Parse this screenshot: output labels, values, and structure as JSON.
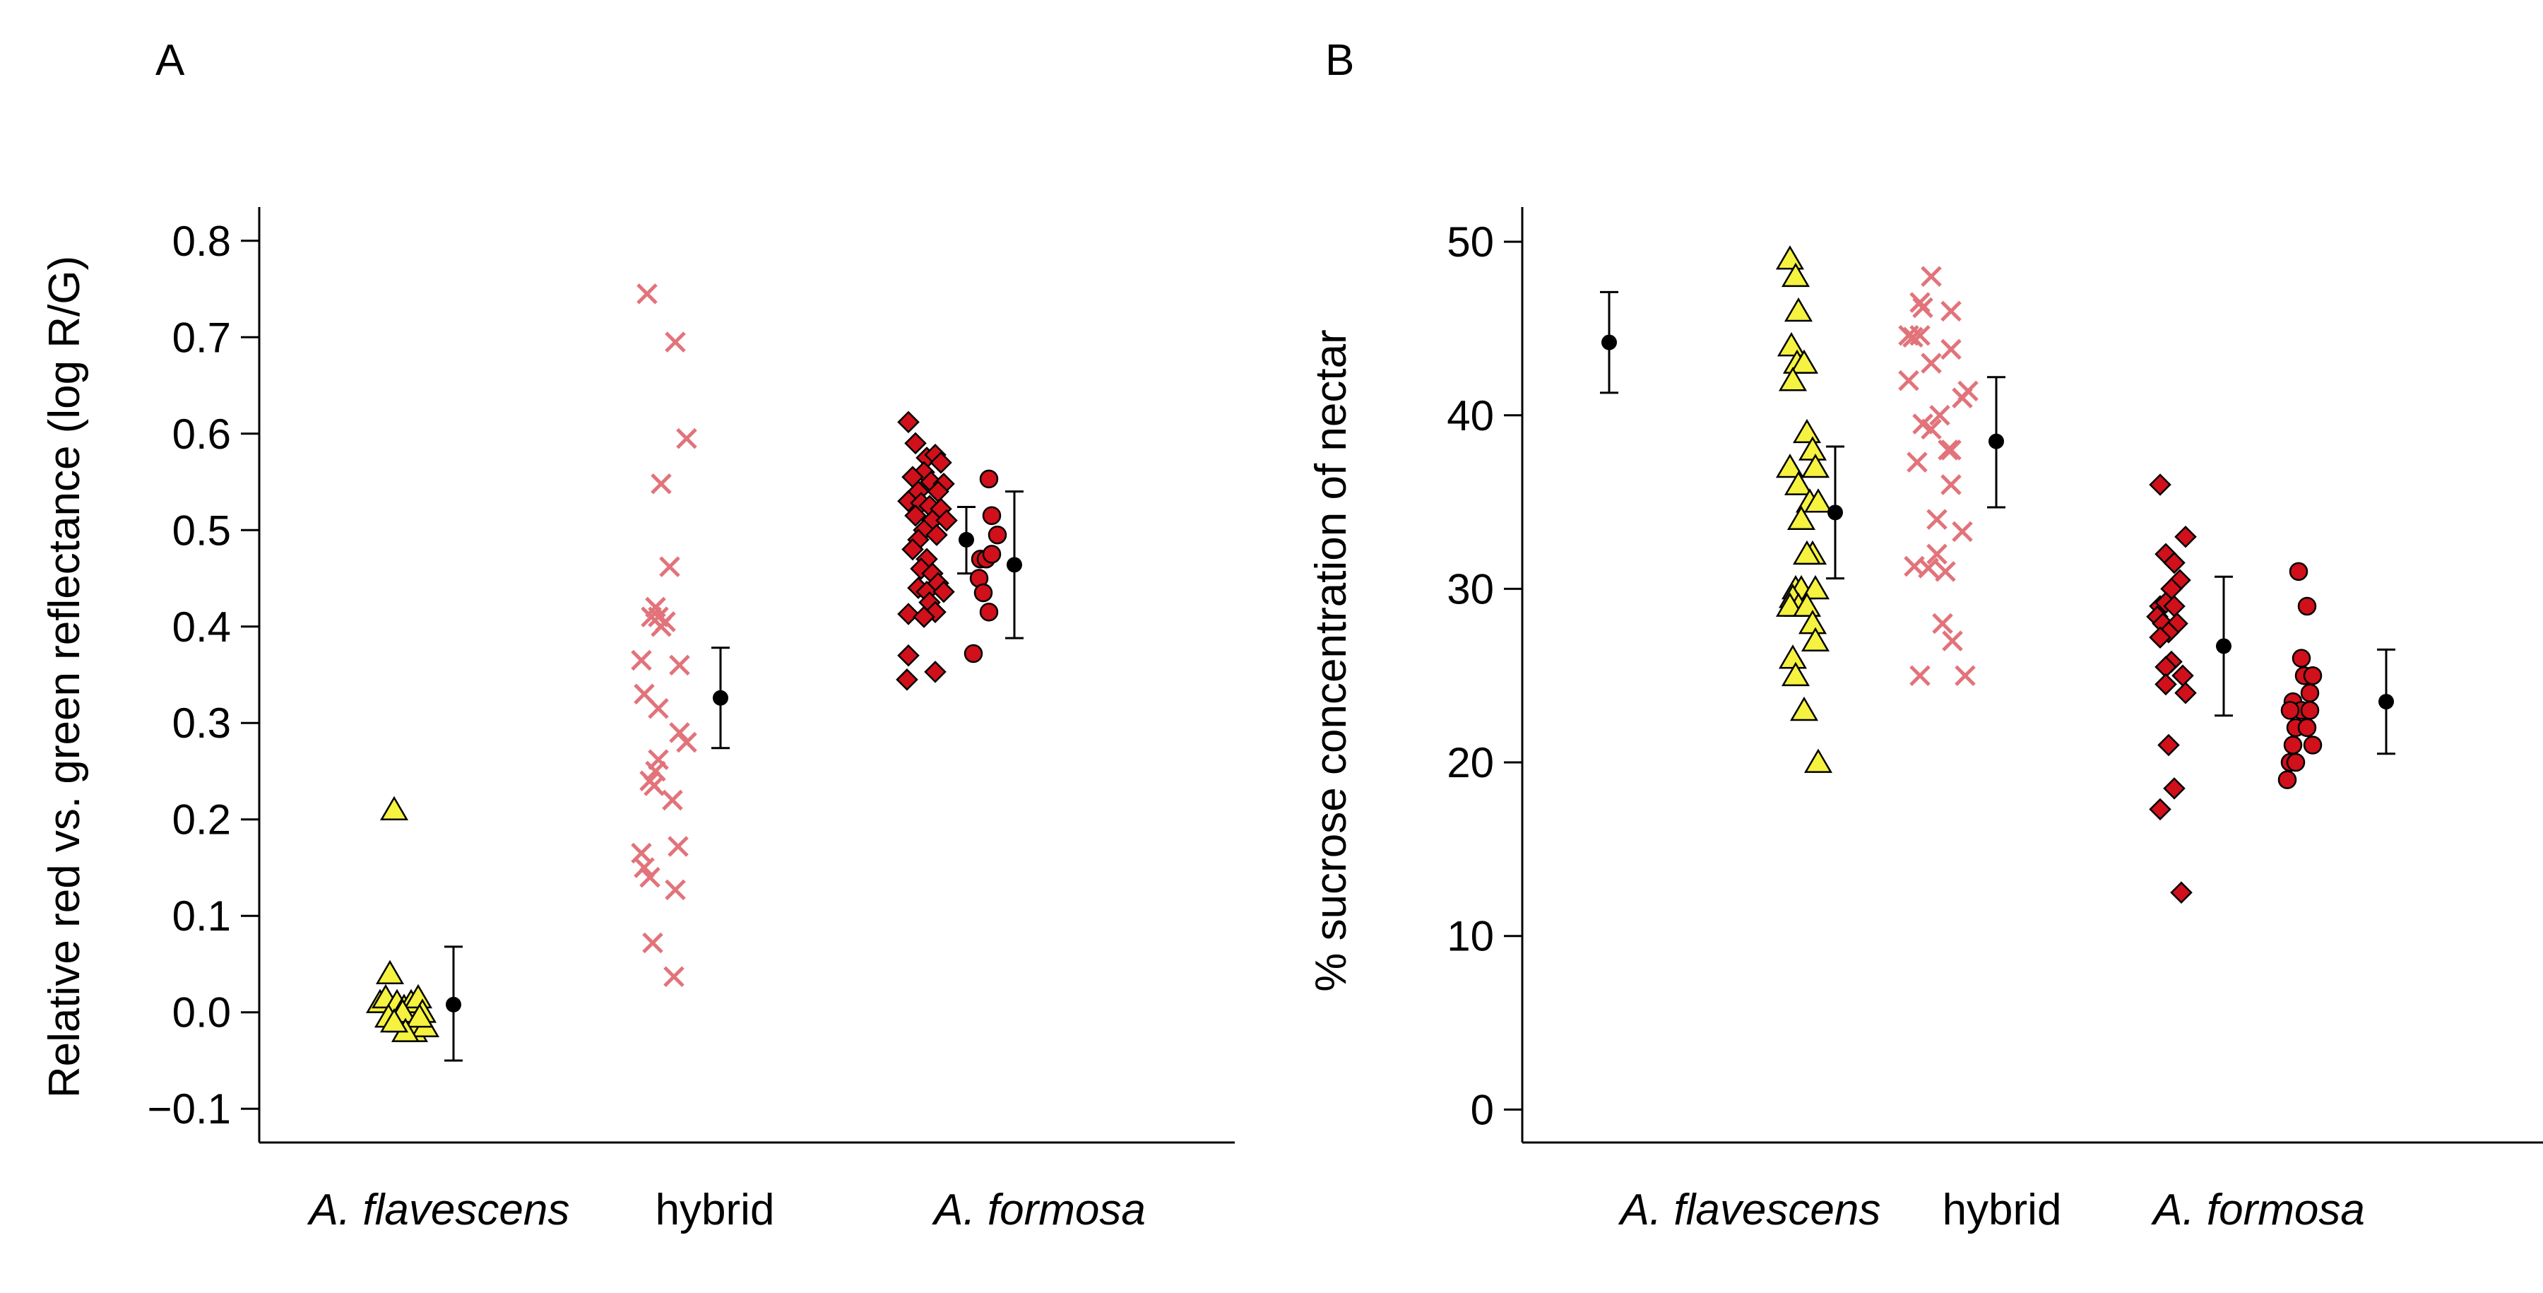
{
  "colors": {
    "flavescens": "#f5f240",
    "hybrid": "#e2737a",
    "formosa": "#d0101a",
    "mean": "#000000",
    "outline": "#000000"
  },
  "chart_data": [
    {
      "panel": "A",
      "type": "scatter",
      "ylabel": "Relative red vs. green reflectance (log R/G)",
      "xlabel": "",
      "ylim": [
        -0.135,
        0.835
      ],
      "yticks": [
        -0.1,
        0.0,
        0.1,
        0.2,
        0.3,
        0.4,
        0.5,
        0.6,
        0.7,
        0.8
      ],
      "ytick_labels": [
        "−0.1",
        "0.0",
        "0.1",
        "0.2",
        "0.3",
        "0.4",
        "0.5",
        "0.6",
        "0.7",
        "0.8"
      ],
      "categories": [
        {
          "label": "A. flavescens",
          "italic": true
        },
        {
          "label": "hybrid",
          "italic": false
        },
        {
          "label": "A. formosa",
          "italic": true
        }
      ],
      "series": [
        {
          "group": "A. flavescens",
          "marker": "triangle",
          "color": "#f5f240",
          "points": [
            [
              -0.32,
              0.21
            ],
            [
              -0.35,
              0.04
            ],
            [
              -0.42,
              0.01
            ],
            [
              -0.38,
              0.015
            ],
            [
              -0.3,
              0.01
            ],
            [
              -0.25,
              0.005
            ],
            [
              -0.2,
              0.01
            ],
            [
              -0.15,
              0.015
            ],
            [
              -0.12,
              0.0
            ],
            [
              -0.36,
              -0.005
            ],
            [
              -0.28,
              -0.01
            ],
            [
              -0.22,
              -0.015
            ],
            [
              -0.18,
              -0.02
            ],
            [
              -0.1,
              -0.015
            ],
            [
              -0.26,
              0.0
            ],
            [
              -0.14,
              -0.005
            ],
            [
              -0.24,
              -0.02
            ],
            [
              -0.32,
              -0.01
            ]
          ]
        },
        {
          "group": "A. flavescens",
          "marker": "mean",
          "color": "#000000",
          "points": [
            [
              0.1,
              0.008
            ]
          ],
          "error": [
            [
              -0.05,
              0.068
            ]
          ]
        },
        {
          "group": "hybrid",
          "marker": "x",
          "color": "#e2737a",
          "points": [
            [
              -0.48,
              0.745
            ],
            [
              -0.28,
              0.695
            ],
            [
              -0.2,
              0.595
            ],
            [
              -0.38,
              0.548
            ],
            [
              -0.32,
              0.462
            ],
            [
              -0.42,
              0.42
            ],
            [
              -0.4,
              0.41
            ],
            [
              -0.35,
              0.405
            ],
            [
              -0.45,
              0.41
            ],
            [
              -0.38,
              0.4
            ],
            [
              -0.52,
              0.365
            ],
            [
              -0.25,
              0.36
            ],
            [
              -0.5,
              0.33
            ],
            [
              -0.4,
              0.315
            ],
            [
              -0.25,
              0.29
            ],
            [
              -0.2,
              0.28
            ],
            [
              -0.4,
              0.262
            ],
            [
              -0.42,
              0.25
            ],
            [
              -0.46,
              0.24
            ],
            [
              -0.43,
              0.235
            ],
            [
              -0.3,
              0.22
            ],
            [
              -0.26,
              0.172
            ],
            [
              -0.52,
              0.165
            ],
            [
              -0.5,
              0.15
            ],
            [
              -0.46,
              0.14
            ],
            [
              -0.28,
              0.127
            ],
            [
              -0.44,
              0.072
            ],
            [
              -0.29,
              0.037
            ]
          ]
        },
        {
          "group": "hybrid",
          "marker": "mean",
          "color": "#000000",
          "points": [
            [
              0.04,
              0.326
            ]
          ],
          "error": [
            [
              0.274,
              0.378
            ]
          ]
        },
        {
          "group": "A. formosa",
          "marker": "diamond",
          "color": "#d0101a",
          "points": [
            [
              -0.93,
              0.612
            ],
            [
              -0.88,
              0.59
            ],
            [
              -0.8,
              0.575
            ],
            [
              -0.74,
              0.578
            ],
            [
              -0.7,
              0.57
            ],
            [
              -0.82,
              0.56
            ],
            [
              -0.9,
              0.555
            ],
            [
              -0.77,
              0.55
            ],
            [
              -0.68,
              0.548
            ],
            [
              -0.86,
              0.54
            ],
            [
              -0.72,
              0.54
            ],
            [
              -0.93,
              0.53
            ],
            [
              -0.84,
              0.528
            ],
            [
              -0.78,
              0.525
            ],
            [
              -0.7,
              0.522
            ],
            [
              -0.88,
              0.515
            ],
            [
              -0.76,
              0.51
            ],
            [
              -0.66,
              0.51
            ],
            [
              -0.82,
              0.5
            ],
            [
              -0.73,
              0.495
            ],
            [
              -0.86,
              0.49
            ],
            [
              -0.9,
              0.48
            ],
            [
              -0.8,
              0.47
            ],
            [
              -0.84,
              0.46
            ],
            [
              -0.76,
              0.455
            ],
            [
              -0.72,
              0.445
            ],
            [
              -0.86,
              0.44
            ],
            [
              -0.8,
              0.436
            ],
            [
              -0.68,
              0.436
            ],
            [
              -0.78,
              0.425
            ],
            [
              -0.74,
              0.415
            ],
            [
              -0.93,
              0.413
            ],
            [
              -0.82,
              0.41
            ],
            [
              -0.93,
              0.37
            ],
            [
              -0.74,
              0.353
            ],
            [
              -0.94,
              0.345
            ]
          ]
        },
        {
          "group": "A. formosa",
          "marker": "mean",
          "color": "#000000",
          "points": [
            [
              -0.52,
              0.49
            ]
          ],
          "error": [
            [
              0.455,
              0.524
            ]
          ]
        },
        {
          "group": "A. formosa",
          "marker": "circle",
          "color": "#d0101a",
          "points": [
            [
              -0.36,
              0.553
            ],
            [
              -0.34,
              0.515
            ],
            [
              -0.3,
              0.495
            ],
            [
              -0.42,
              0.47
            ],
            [
              -0.38,
              0.47
            ],
            [
              -0.34,
              0.475
            ],
            [
              -0.43,
              0.45
            ],
            [
              -0.4,
              0.435
            ],
            [
              -0.36,
              0.415
            ],
            [
              -0.47,
              0.372
            ]
          ]
        },
        {
          "group": "A. formosa",
          "marker": "mean",
          "color": "#000000",
          "points": [
            [
              -0.18,
              0.464
            ]
          ],
          "error": [
            [
              0.388,
              0.54
            ]
          ]
        }
      ]
    },
    {
      "panel": "B",
      "type": "scatter",
      "ylabel": "% sucrose concentration of nectar",
      "xlabel": "",
      "ylim": [
        -1.9,
        52
      ],
      "yticks": [
        0,
        10,
        20,
        30,
        40,
        50
      ],
      "ytick_labels": [
        "0",
        "10",
        "20",
        "30",
        "40",
        "50"
      ],
      "categories": [
        {
          "label": "A. flavescens",
          "italic": true
        },
        {
          "label": "hybrid",
          "italic": false
        },
        {
          "label": "A. formosa",
          "italic": true
        }
      ],
      "series": [
        {
          "group": "A. flavescens",
          "marker": "mean",
          "color": "#000000",
          "points": [
            [
              -1.0,
              44.2
            ]
          ],
          "error": [
            [
              41.3,
              47.1
            ]
          ]
        },
        {
          "group": "A. flavescens",
          "marker": "triangle",
          "color": "#f5f240",
          "points": [
            [
              0.28,
              49
            ],
            [
              0.32,
              48
            ],
            [
              0.34,
              46
            ],
            [
              0.29,
              44
            ],
            [
              0.33,
              43
            ],
            [
              0.38,
              43
            ],
            [
              0.3,
              42
            ],
            [
              0.4,
              39
            ],
            [
              0.44,
              38
            ],
            [
              0.28,
              37
            ],
            [
              0.46,
              37
            ],
            [
              0.34,
              36
            ],
            [
              0.42,
              35
            ],
            [
              0.48,
              35
            ],
            [
              0.36,
              34
            ],
            [
              0.44,
              32
            ],
            [
              0.4,
              32
            ],
            [
              0.32,
              30
            ],
            [
              0.36,
              30
            ],
            [
              0.3,
              29.5
            ],
            [
              0.34,
              29
            ],
            [
              0.46,
              30
            ],
            [
              0.28,
              29
            ],
            [
              0.4,
              29
            ],
            [
              0.44,
              28
            ],
            [
              0.46,
              27
            ],
            [
              0.3,
              26
            ],
            [
              0.32,
              25
            ],
            [
              0.38,
              23
            ],
            [
              0.48,
              20
            ]
          ]
        },
        {
          "group": "A. flavescens",
          "marker": "mean",
          "color": "#000000",
          "points": [
            [
              0.6,
              34.4
            ]
          ],
          "error": [
            [
              30.6,
              38.2
            ]
          ]
        },
        {
          "group": "hybrid",
          "marker": "x",
          "color": "#e2737a",
          "points": [
            [
              -0.5,
              48
            ],
            [
              -0.58,
              46.5
            ],
            [
              -0.56,
              46.2
            ],
            [
              -0.36,
              46
            ],
            [
              -0.63,
              44.5
            ],
            [
              -0.58,
              44.6
            ],
            [
              -0.66,
              44.6
            ],
            [
              -0.36,
              43.8
            ],
            [
              -0.5,
              43
            ],
            [
              -0.66,
              42
            ],
            [
              -0.24,
              41.4
            ],
            [
              -0.28,
              41
            ],
            [
              -0.44,
              40
            ],
            [
              -0.5,
              39.2
            ],
            [
              -0.56,
              39.5
            ],
            [
              -0.36,
              38
            ],
            [
              -0.38,
              38
            ],
            [
              -0.6,
              37.3
            ],
            [
              -0.36,
              36
            ],
            [
              -0.46,
              34
            ],
            [
              -0.28,
              33.3
            ],
            [
              -0.46,
              32
            ],
            [
              -0.62,
              31.3
            ],
            [
              -0.52,
              31.2
            ],
            [
              -0.4,
              31
            ],
            [
              -0.42,
              28
            ],
            [
              -0.35,
              27
            ],
            [
              -0.58,
              25
            ],
            [
              -0.26,
              25
            ]
          ]
        },
        {
          "group": "hybrid",
          "marker": "mean",
          "color": "#000000",
          "points": [
            [
              -0.04,
              38.5
            ]
          ],
          "error": [
            [
              34.7,
              42.2
            ]
          ]
        },
        {
          "group": "A. formosa",
          "marker": "diamond",
          "color": "#d0101a",
          "points": [
            [
              -0.7,
              36
            ],
            [
              -0.52,
              33
            ],
            [
              -0.66,
              32
            ],
            [
              -0.6,
              31.5
            ],
            [
              -0.56,
              30.5
            ],
            [
              -0.62,
              30
            ],
            [
              -0.7,
              29
            ],
            [
              -0.66,
              29.2
            ],
            [
              -0.6,
              29
            ],
            [
              -0.72,
              28.4
            ],
            [
              -0.68,
              28
            ],
            [
              -0.58,
              28
            ],
            [
              -0.64,
              27.5
            ],
            [
              -0.7,
              27.2
            ],
            [
              -0.62,
              25.8
            ],
            [
              -0.66,
              25.5
            ],
            [
              -0.54,
              25
            ],
            [
              -0.66,
              24.5
            ],
            [
              -0.52,
              24
            ],
            [
              -0.64,
              21
            ],
            [
              -0.6,
              18.5
            ],
            [
              -0.7,
              17.3
            ],
            [
              -0.55,
              12.5
            ]
          ]
        },
        {
          "group": "A. formosa",
          "marker": "mean",
          "color": "#000000",
          "points": [
            [
              -0.25,
              26.7
            ]
          ],
          "error": [
            [
              22.7,
              30.7
            ]
          ]
        },
        {
          "group": "A. formosa",
          "marker": "circle",
          "color": "#d0101a",
          "points": [
            [
              0.28,
              31
            ],
            [
              0.34,
              29
            ],
            [
              0.3,
              26
            ],
            [
              0.32,
              25
            ],
            [
              0.24,
              23.5
            ],
            [
              0.38,
              25
            ],
            [
              0.36,
              24
            ],
            [
              0.3,
              23
            ],
            [
              0.22,
              23
            ],
            [
              0.36,
              23
            ],
            [
              0.26,
              22
            ],
            [
              0.34,
              22
            ],
            [
              0.24,
              21
            ],
            [
              0.38,
              21
            ],
            [
              0.22,
              20
            ],
            [
              0.26,
              20
            ],
            [
              0.2,
              19
            ]
          ]
        },
        {
          "group": "A. formosa",
          "marker": "mean",
          "color": "#000000",
          "points": [
            [
              0.9,
              23.5
            ]
          ],
          "error": [
            [
              20.5,
              26.5
            ]
          ]
        }
      ]
    }
  ]
}
